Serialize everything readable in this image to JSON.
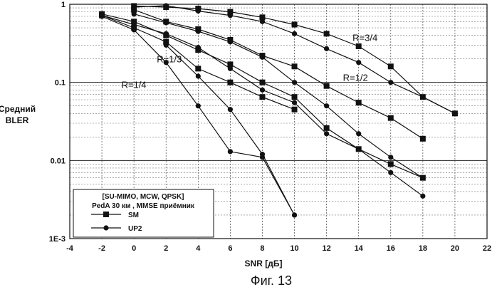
{
  "chart_data": {
    "type": "line",
    "xlabel": "SNR [дБ]",
    "ylabel": "Средний BLER",
    "caption": "Фиг. 13",
    "xlim": [
      -4,
      22
    ],
    "ylim": [
      0.001,
      1
    ],
    "yscale": "log",
    "grid": true,
    "x_ticks": [
      "-4",
      "-2",
      "0",
      "2",
      "4",
      "6",
      "8",
      "10",
      "12",
      "14",
      "16",
      "18",
      "20",
      "22"
    ],
    "y_ticks": [
      "1",
      "0.1",
      "0.01",
      "1E-3"
    ],
    "legend": {
      "position": "bottom-left",
      "title_lines": [
        "[SU-MIMO, MCW, QPSK]",
        "PedA 30 км , MMSE приёмник"
      ],
      "entries": [
        {
          "label": "SM",
          "marker": "square"
        },
        {
          "label": "UP2",
          "marker": "circle"
        }
      ]
    },
    "annotations": [
      {
        "text": "R=3/4",
        "x": 14.4,
        "y": 0.34
      },
      {
        "text": "R=1/2",
        "x": 13.8,
        "y": 0.105
      },
      {
        "text": "R=1/3",
        "x": 2.2,
        "y": 0.18
      },
      {
        "text": "R=1/4",
        "x": 0.0,
        "y": 0.085
      }
    ],
    "series": [
      {
        "marker": "square",
        "x": [
          0,
          2,
          4,
          6,
          8,
          10,
          12,
          14,
          16,
          18,
          20
        ],
        "y": [
          0.95,
          0.92,
          0.88,
          0.8,
          0.68,
          0.55,
          0.42,
          0.29,
          0.16,
          0.065,
          0.04
        ]
      },
      {
        "marker": "circle",
        "x": [
          0,
          2,
          4,
          6,
          8,
          10,
          12,
          14,
          16,
          18,
          20
        ],
        "y": [
          0.92,
          0.96,
          0.82,
          0.72,
          0.6,
          0.42,
          0.27,
          0.18,
          0.1,
          0.065,
          0.04
        ]
      },
      {
        "marker": "square",
        "x": [
          0,
          2,
          4,
          6,
          8,
          10,
          12,
          14,
          16,
          18
        ],
        "y": [
          0.85,
          0.6,
          0.48,
          0.35,
          0.22,
          0.16,
          0.09,
          0.055,
          0.035,
          0.019
        ]
      },
      {
        "marker": "circle",
        "x": [
          0,
          2,
          4,
          6,
          8,
          10,
          12,
          14,
          16,
          18
        ],
        "y": [
          0.75,
          0.58,
          0.45,
          0.33,
          0.21,
          0.1,
          0.05,
          0.022,
          0.011,
          0.006
        ]
      },
      {
        "marker": "square",
        "x": [
          -2,
          0,
          2,
          4,
          6,
          8,
          10,
          12,
          14,
          16,
          18
        ],
        "y": [
          0.75,
          0.6,
          0.4,
          0.26,
          0.17,
          0.1,
          0.065,
          0.026,
          0.014,
          0.009,
          0.006
        ]
      },
      {
        "marker": "circle",
        "x": [
          -2,
          0,
          2,
          4,
          6,
          8,
          10,
          12,
          14,
          16,
          18
        ],
        "y": [
          0.72,
          0.55,
          0.42,
          0.28,
          0.15,
          0.08,
          0.055,
          0.022,
          0.014,
          0.007,
          0.0035
        ]
      },
      {
        "marker": "square",
        "x": [
          -2,
          0,
          2,
          4,
          6,
          8,
          10
        ],
        "y": [
          0.72,
          0.5,
          0.33,
          0.15,
          0.1,
          0.065,
          0.045
        ]
      },
      {
        "marker": "circle",
        "x": [
          -2,
          0,
          2,
          4,
          6,
          8,
          10
        ],
        "y": [
          0.7,
          0.47,
          0.18,
          0.05,
          0.013,
          0.011,
          0.002
        ]
      },
      {
        "marker": "circle",
        "x": [
          2,
          4,
          6,
          8,
          10
        ],
        "y": [
          0.3,
          0.12,
          0.045,
          0.012,
          0.002
        ]
      }
    ]
  }
}
